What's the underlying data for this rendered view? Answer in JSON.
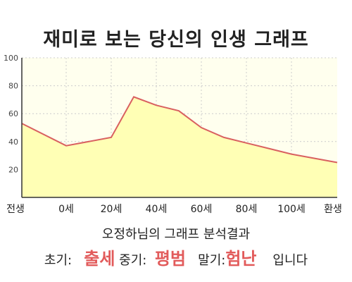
{
  "title": "재미로 보는 당신의 인생 그래프",
  "summary": {
    "heading": "오정하님의 그래프 분석결과",
    "early_label": "초기:",
    "early_value": "출세",
    "mid_label": "중기:",
    "mid_value": "평범",
    "late_label": "말기:",
    "late_value": "험난",
    "ending": "입니다"
  },
  "colors": {
    "line": "#d96060",
    "fill": "#ffffb5",
    "highlight": "#e25b5b",
    "axis": "#333333",
    "grid": "#cccccc"
  },
  "chart_data": {
    "type": "area",
    "title": "재미로 보는 당신의 인생 그래프",
    "xlabel": "",
    "ylabel": "",
    "ylim": [
      0,
      100
    ],
    "yticks": [
      20,
      40,
      60,
      80,
      100
    ],
    "xticks": [
      "전생",
      "0세",
      "20세",
      "40세",
      "60세",
      "80세",
      "100세",
      "환생"
    ],
    "grid": true,
    "series": [
      {
        "points": [
          {
            "x": "전생",
            "y": 53
          },
          {
            "x": "0세",
            "y": 37
          },
          {
            "x": "20세",
            "y": 43
          },
          {
            "x": "30세",
            "y": 72
          },
          {
            "x": "40세",
            "y": 66
          },
          {
            "x": "50세",
            "y": 62
          },
          {
            "x": "60세",
            "y": 50
          },
          {
            "x": "70세",
            "y": 43
          },
          {
            "x": "80세",
            "y": 39
          },
          {
            "x": "100세",
            "y": 31
          },
          {
            "x": "환생",
            "y": 25
          }
        ]
      }
    ]
  }
}
